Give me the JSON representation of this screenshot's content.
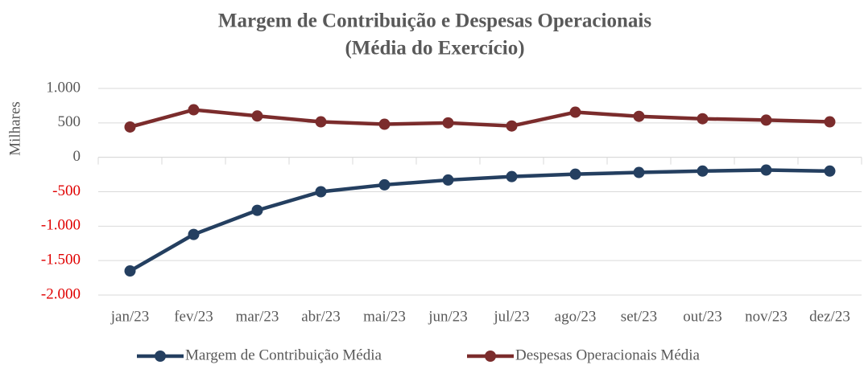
{
  "chart_data": {
    "type": "line",
    "title": "Margem de Contribuição e Despesas Operacionais",
    "subtitle": "(Média do Exercício)",
    "y_label": "Milhares",
    "categories": [
      "jan/23",
      "fev/23",
      "mar/23",
      "abr/23",
      "mai/23",
      "jun/23",
      "jul/23",
      "ago/23",
      "set/23",
      "out/23",
      "nov/23",
      "dez/23"
    ],
    "series": [
      {
        "name": "Margem de Contribuição Média",
        "color": "#243f60",
        "values": [
          -1650,
          -1120,
          -770,
          -500,
          -400,
          -330,
          -280,
          -245,
          -220,
          -200,
          -185,
          -200
        ]
      },
      {
        "name": "Despesas Operacionais Média",
        "color": "#7b2c2c",
        "values": [
          440,
          690,
          600,
          515,
          480,
          500,
          455,
          655,
          595,
          560,
          540,
          515
        ]
      }
    ],
    "ylim": [
      -2000,
      1000
    ],
    "yticks": [
      {
        "value": 1000,
        "label": "1.000"
      },
      500,
      0,
      -500,
      {
        "value": -1000,
        "label": "-1.000"
      },
      {
        "value": -1500,
        "label": "-1.500"
      },
      {
        "value": -2000,
        "label": "-2.000"
      }
    ],
    "grid": true,
    "negative_tick_color": "#e00000",
    "legend": "bottom"
  }
}
